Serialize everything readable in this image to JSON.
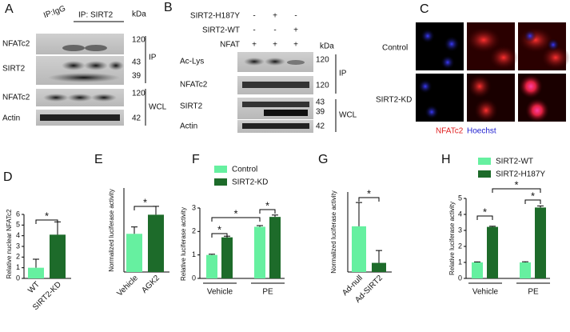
{
  "panels": {
    "A": {
      "letter": "A",
      "headers": [
        "IP:IgG",
        "IP: SIRT2"
      ],
      "kda": "kDa",
      "rows": [
        "NFATc2",
        "SIRT2",
        "NFATc2",
        "Actin"
      ],
      "markers": [
        "120",
        "43",
        "39",
        "120",
        "42"
      ],
      "groups": [
        "IP",
        "WCL"
      ]
    },
    "B": {
      "letter": "B",
      "conditions": [
        {
          "label": "SIRT2-H187Y",
          "signs": [
            "-",
            "+",
            "-"
          ]
        },
        {
          "label": "SIRT2-WT",
          "signs": [
            "-",
            "-",
            "+"
          ]
        },
        {
          "label": "NFAT",
          "signs": [
            "+",
            "+",
            "+"
          ]
        }
      ],
      "kda": "kDa",
      "rows": [
        "Ac-Lys",
        "NFATc2",
        "SIRT2",
        "Actin"
      ],
      "markers": [
        "120",
        "120",
        "43",
        "39",
        "42"
      ],
      "groups": [
        "IP",
        "WCL"
      ]
    },
    "C": {
      "letter": "C",
      "rows": [
        "Control",
        "SIRT2-KD"
      ],
      "channels": [
        "NFATc2",
        "Hoechst"
      ]
    }
  },
  "chart_data": [
    {
      "type": "bar",
      "letter": "D",
      "ylabel": "Relative nuclear NFATc2",
      "categories": [
        "WT",
        "SIRT2-KD"
      ],
      "values": [
        1.0,
        4.1
      ],
      "errors": [
        0.8,
        1.2
      ],
      "colors": [
        "#66f0a0",
        "#1d6b2a"
      ],
      "ylim": [
        0,
        6
      ],
      "yticks": [
        0,
        1,
        2,
        3,
        4,
        5,
        6
      ],
      "annotations": [
        "*"
      ]
    },
    {
      "type": "bar",
      "letter": "E",
      "ylabel": "Normalized luciferase activity",
      "categories": [
        "Vehicle",
        "AGK2"
      ],
      "values": [
        1.0,
        1.5
      ],
      "errors": [
        0.18,
        0.22
      ],
      "colors": [
        "#66f0a0",
        "#1d6b2a"
      ],
      "ylim": [
        0,
        2.2
      ],
      "annotations": [
        "*"
      ]
    },
    {
      "type": "grouped-bar",
      "letter": "F",
      "ylabel": "Relative luciferase activity",
      "categories": [
        "Vehicle",
        "PE"
      ],
      "series": [
        {
          "name": "Control",
          "color": "#66f0a0",
          "values": [
            1.0,
            2.2
          ],
          "errors": [
            0.03,
            0.05
          ]
        },
        {
          "name": "SIRT2-KD",
          "color": "#1d6b2a",
          "values": [
            1.75,
            2.62
          ],
          "errors": [
            0.05,
            0.08
          ]
        }
      ],
      "ylim": [
        0,
        3
      ],
      "yticks": [
        0,
        1,
        2,
        3
      ],
      "annotations": [
        "*",
        "*",
        "*"
      ]
    },
    {
      "type": "bar",
      "letter": "G",
      "ylabel": "Normalized luciferase activity",
      "categories": [
        "Ad-null",
        "Ad-SIRT2"
      ],
      "values": [
        1.0,
        0.2
      ],
      "errors": [
        0.52,
        0.27
      ],
      "colors": [
        "#66f0a0",
        "#1d6b2a"
      ],
      "ylim": [
        0,
        1.75
      ],
      "annotations": [
        "*"
      ]
    },
    {
      "type": "grouped-bar",
      "letter": "H",
      "ylabel": "Relative luciferase activity",
      "categories": [
        "Vehicle",
        "PE"
      ],
      "series": [
        {
          "name": "SIRT2-WT",
          "color": "#66f0a0",
          "values": [
            1.0,
            1.0
          ],
          "errors": [
            0.03,
            0.04
          ]
        },
        {
          "name": "SIRT2-H187Y",
          "color": "#1d6b2a",
          "values": [
            3.22,
            4.43
          ],
          "errors": [
            0.04,
            0.1
          ]
        }
      ],
      "ylim": [
        0,
        5
      ],
      "yticks": [
        0,
        1,
        2,
        3,
        4,
        5
      ],
      "annotations": [
        "*",
        "*",
        "*"
      ]
    }
  ]
}
